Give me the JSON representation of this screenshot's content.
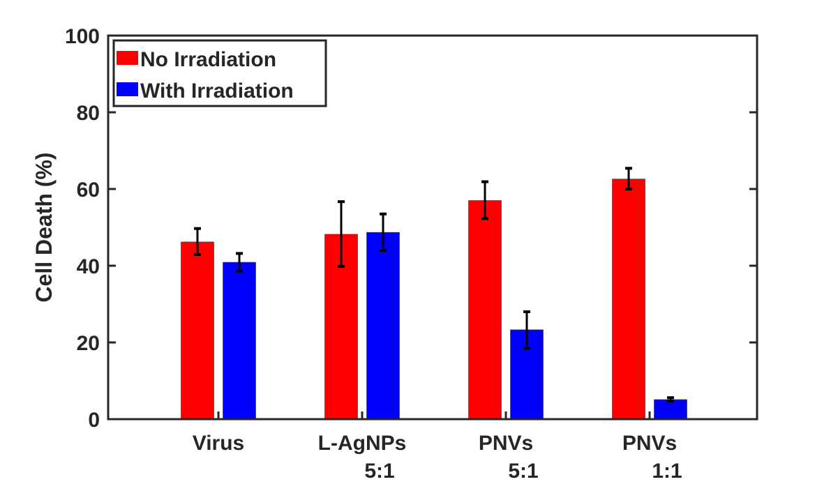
{
  "chart_data": {
    "type": "bar",
    "title": "",
    "xlabel": "",
    "ylabel": "Cell Death (%)",
    "ylim": [
      0,
      100
    ],
    "yticks": [
      0,
      20,
      40,
      60,
      80,
      100
    ],
    "grid": false,
    "legend_position": "top-left",
    "categories": [
      [
        "Virus"
      ],
      [
        "L-AgNPs",
        "5:1"
      ],
      [
        "PNVs",
        "5:1"
      ],
      [
        "PNVs",
        "1:1"
      ]
    ],
    "series": [
      {
        "name": "No Irradiation",
        "color": "#ff0000",
        "values": [
          46.2,
          48.2,
          57.0,
          62.6
        ],
        "error_low": [
          42.9,
          39.8,
          52.3,
          60.0
        ],
        "error_high": [
          49.7,
          56.7,
          61.9,
          65.4
        ]
      },
      {
        "name": "With Irradiation",
        "color": "#0000ff",
        "values": [
          40.9,
          48.7,
          23.3,
          5.1
        ],
        "error_low": [
          38.6,
          44.0,
          18.5,
          4.7
        ],
        "error_high": [
          43.2,
          53.5,
          28.0,
          5.6
        ]
      }
    ]
  }
}
